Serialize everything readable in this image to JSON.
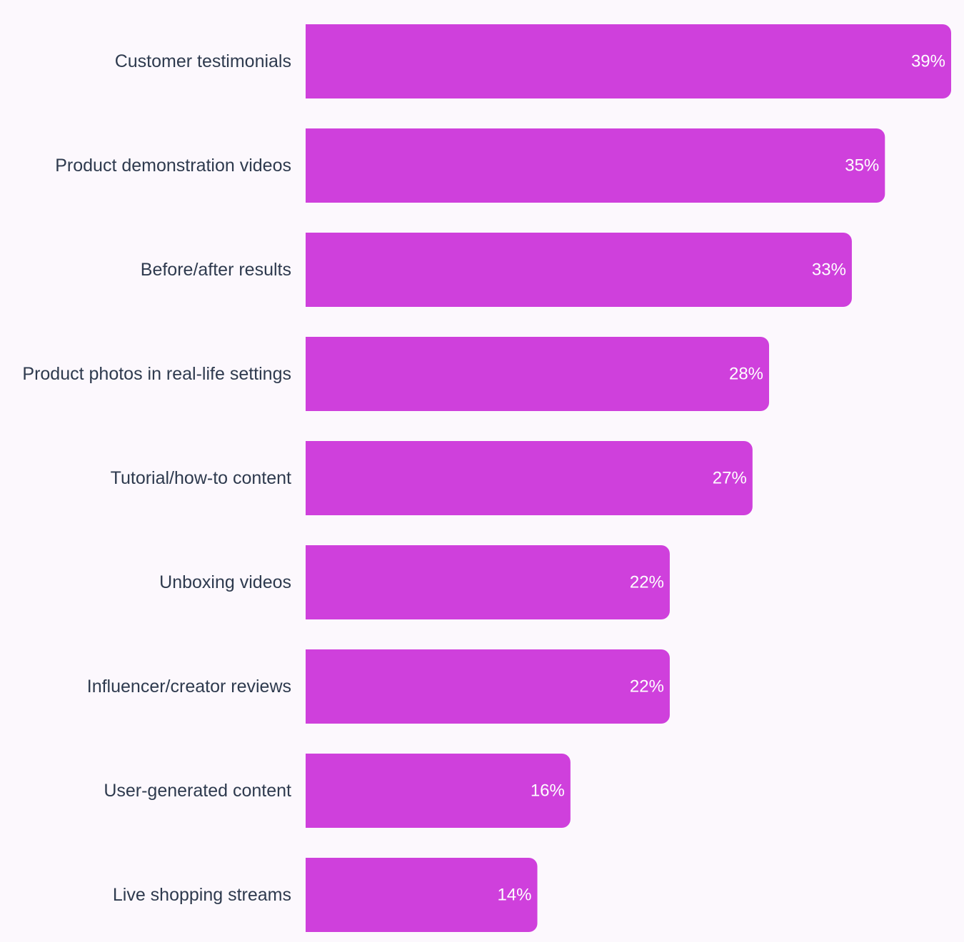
{
  "colors": {
    "bar": "#cf40dc",
    "label_text": "#2e3a4e",
    "value_text": "#ffffff",
    "background": "#fcf8fd"
  },
  "chart_data": {
    "type": "bar",
    "orientation": "horizontal",
    "title": "",
    "xlabel": "",
    "ylabel": "",
    "xlim": [
      0,
      39
    ],
    "grid": false,
    "legend": "none",
    "categories": [
      "Customer testimonials",
      "Product demonstration videos",
      "Before/after results",
      "Product photos in real-life settings",
      "Tutorial/how-to content",
      "Unboxing videos",
      "Influencer/creator reviews",
      "User-generated content",
      "Live shopping streams"
    ],
    "values": [
      39,
      35,
      33,
      28,
      27,
      22,
      22,
      16,
      14
    ],
    "value_labels": [
      "39%",
      "35%",
      "33%",
      "28%",
      "27%",
      "22%",
      "22%",
      "16%",
      "14%"
    ]
  }
}
